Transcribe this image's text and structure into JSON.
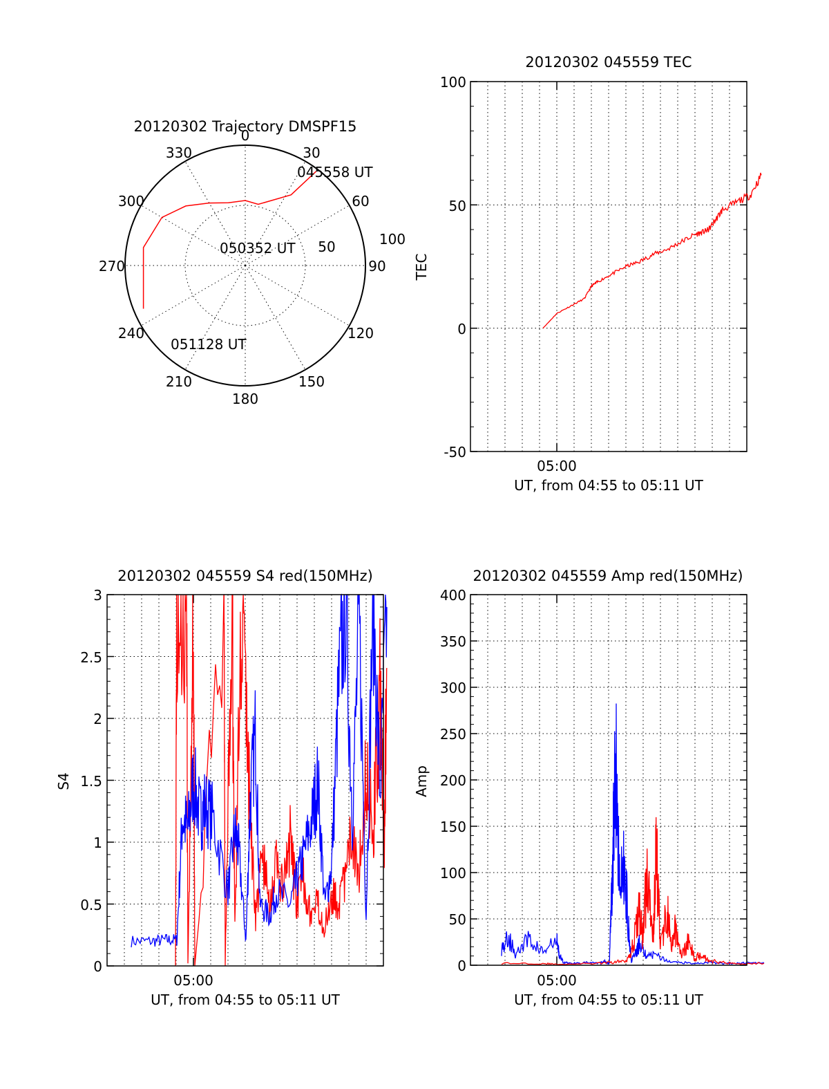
{
  "colors": {
    "red": "#ff0000",
    "blue": "#0000ff",
    "axis": "#000000"
  },
  "chart_data": [
    {
      "id": "trajectory",
      "type": "polar",
      "title": "20120302 Trajectory DMSPF15",
      "radius_max": 100,
      "radial_ticks": [
        "50",
        "100"
      ],
      "angle_ticks": [
        "0",
        "30",
        "60",
        "90",
        "120",
        "150",
        "180",
        "210",
        "240",
        "270",
        "300",
        "330"
      ],
      "series": [
        {
          "name": "trajectory",
          "color": "red",
          "points": [
            [
              37,
              98
            ],
            [
              33,
              70
            ],
            [
              12,
              52
            ],
            [
              0,
              54
            ],
            [
              -15,
              54
            ],
            [
              -30,
              60
            ],
            [
              -45,
              70
            ],
            [
              -60,
              80
            ],
            [
              -80,
              86
            ],
            [
              -113,
              92
            ]
          ]
        }
      ],
      "annotations": [
        "045558 UT",
        "050352 UT",
        "051128 UT"
      ]
    },
    {
      "id": "tec",
      "type": "line",
      "title": "20120302 045559 TEC",
      "ylabel": "TEC",
      "xlabel": "UT, from 04:55 to 05:11 UT",
      "xtick_label": "05:00",
      "ylim": [
        -50,
        100
      ],
      "yticks": [
        "-50",
        "0",
        "50",
        "100"
      ],
      "series": [
        {
          "name": "TEC",
          "color": "red",
          "x": [
            4.0,
            5.0,
            6.0,
            7.0,
            7.5,
            8.0,
            9.0,
            10.0,
            11.0,
            12.0,
            13.0,
            14.0,
            15.0,
            15.6,
            16.0,
            16.5,
            17.0,
            18.0,
            19.0,
            19.8
          ],
          "y": [
            0,
            6,
            9,
            12,
            17,
            19,
            22,
            25,
            27,
            30,
            32,
            35,
            38,
            39,
            40,
            44,
            48,
            51,
            54,
            62
          ]
        }
      ]
    },
    {
      "id": "s4",
      "type": "line",
      "title": "20120302 045559 S4 red(150MHz)",
      "ylabel": "S4",
      "xlabel": "UT, from 04:55 to 05:11 UT",
      "xtick_label": "05:00",
      "ylim": [
        0,
        3
      ],
      "yticks": [
        "0",
        "0.5",
        "1",
        "1.5",
        "2",
        "2.5",
        "3"
      ],
      "series": [
        {
          "name": "S4 blue",
          "color": "blue",
          "x": [
            0.5,
            2.0,
            3.0,
            3.8,
            4.2,
            4.6,
            5.0,
            5.5,
            5.8,
            6.4,
            7.5,
            8.0,
            8.3,
            8.8,
            9.1,
            9.5,
            9.8,
            10.5,
            11.0,
            12.0,
            12.5,
            13.0,
            13.6,
            14.0,
            14.5,
            15.0,
            15.5,
            16.0,
            16.5,
            17.0,
            17.5,
            18.0,
            18.5,
            19.0
          ],
          "y": [
            0.2,
            0.2,
            0.21,
            0.21,
            1.2,
            1.1,
            1.5,
            1.2,
            1.3,
            1.2,
            0.6,
            1.1,
            0.9,
            0.2,
            1.3,
            1.9,
            0.5,
            0.4,
            0.6,
            0.5,
            0.7,
            0.9,
            1.2,
            1.5,
            0.5,
            0.8,
            2.2,
            3.0,
            1.2,
            2.8,
            0.4,
            3.0,
            1.4,
            2.9
          ]
        },
        {
          "name": "S4 red",
          "color": "red",
          "x": [
            3.7,
            3.8,
            4.5,
            4.6,
            5.0,
            5.1,
            7.2,
            7.3,
            7.8,
            8.0,
            8.5,
            9.0,
            9.5,
            10.0,
            10.5,
            11.0,
            11.5,
            12.0,
            12.5,
            13.0,
            13.5,
            14.0,
            14.5,
            15.0,
            15.5,
            16.0,
            16.5,
            17.0,
            17.5,
            18.0,
            18.5,
            18.8,
            19.0
          ],
          "y": [
            0.0,
            3.0,
            3.0,
            0.0,
            3.0,
            0.0,
            3.0,
            0.0,
            3.0,
            0.3,
            3.0,
            1.5,
            0.4,
            0.9,
            0.5,
            0.8,
            0.6,
            1.0,
            0.5,
            0.7,
            0.4,
            0.5,
            0.3,
            0.6,
            0.5,
            0.7,
            1.1,
            0.8,
            1.6,
            1.1,
            2.2,
            1.0,
            2.4
          ]
        }
      ]
    },
    {
      "id": "amp",
      "type": "line",
      "title": "20120302 045559 Amp red(150MHz)",
      "ylabel": "Amp",
      "xlabel": "UT, from 04:55 to 05:11 UT",
      "xtick_label": "05:00",
      "ylim": [
        0,
        400
      ],
      "yticks": [
        "0",
        "50",
        "100",
        "150",
        "200",
        "250",
        "300",
        "350",
        "400"
      ],
      "series": [
        {
          "name": "Amp blue",
          "color": "blue",
          "x": [
            1.0,
            1.5,
            2.0,
            3.0,
            4.0,
            5.0,
            5.2,
            5.5,
            6.0,
            7.0,
            8.0,
            8.5,
            8.8,
            9.0,
            9.1,
            9.3,
            9.6,
            9.9,
            10.2,
            10.4,
            10.8,
            11.0,
            11.5,
            12.0,
            13.0,
            14.0,
            15.0,
            16.0,
            17.0,
            18.0,
            19.0,
            20.0
          ],
          "y": [
            18,
            30,
            12,
            28,
            14,
            26,
            10,
            3,
            2,
            3,
            2,
            4,
            2,
            90,
            160,
            210,
            80,
            110,
            40,
            5,
            15,
            25,
            8,
            12,
            4,
            3,
            2,
            3,
            2,
            2,
            3,
            2
          ]
        },
        {
          "name": "Amp red",
          "color": "red",
          "x": [
            1.0,
            4.0,
            5.0,
            8.0,
            9.0,
            10.0,
            10.5,
            11.0,
            11.2,
            11.5,
            12.0,
            12.2,
            12.5,
            13.0,
            13.3,
            13.6,
            14.0,
            14.5,
            15.0,
            15.5,
            16.0,
            17.0,
            18.0,
            20.0
          ],
          "y": [
            2,
            2,
            1,
            2,
            3,
            5,
            20,
            60,
            30,
            90,
            40,
            130,
            20,
            60,
            15,
            40,
            10,
            25,
            8,
            12,
            5,
            3,
            2,
            2
          ]
        }
      ]
    }
  ]
}
